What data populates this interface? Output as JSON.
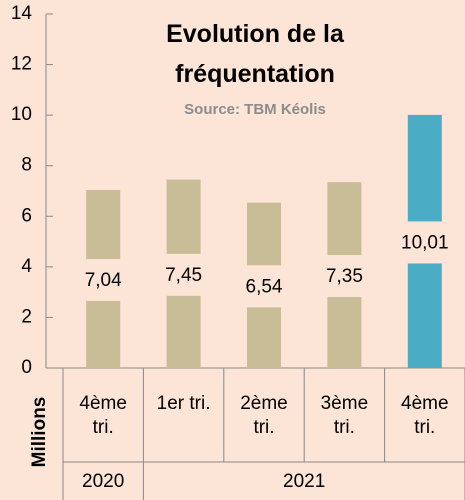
{
  "chart_data": {
    "type": "bar",
    "title": "Evolution de la fréquentation",
    "subtitle": "Source: TBM Kéolis",
    "y_axis_label": "Millions",
    "category_groups": [
      {
        "label": "2020",
        "categories": [
          "4ème tri."
        ]
      },
      {
        "label": "2021",
        "categories": [
          "1er tri.",
          "2ème tri.",
          "3ème tri.",
          "4ème tri."
        ]
      }
    ],
    "values": [
      7.04,
      7.45,
      6.54,
      7.35,
      10.01
    ],
    "value_labels": [
      "7,04",
      "7,45",
      "6,54",
      "7,35",
      "10,01"
    ],
    "colors": [
      "#c8bd96",
      "#c8bd96",
      "#c8bd96",
      "#c8bd96",
      "#4bacc6"
    ],
    "ylim": [
      0,
      14
    ],
    "yticks": [
      0,
      2,
      4,
      6,
      8,
      10,
      12,
      14
    ],
    "grid": false
  }
}
